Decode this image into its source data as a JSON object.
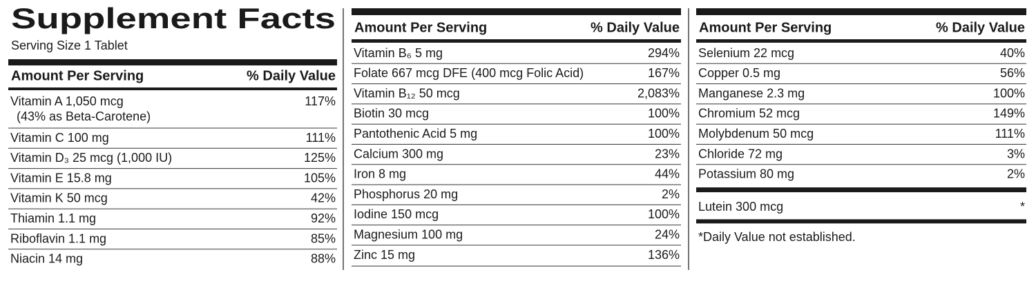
{
  "title": "Supplement Facts",
  "serving_size": "Serving Size 1 Tablet",
  "columns": [
    {
      "header": {
        "amount": "Amount Per Serving",
        "daily_value": "% Daily Value"
      },
      "rows": [
        {
          "name": "Vitamin A 1,050 mcg",
          "note": "(43% as Beta-Carotene)",
          "dv": "117%"
        },
        {
          "name": "Vitamin C 100 mg",
          "dv": "111%"
        },
        {
          "name": "Vitamin D₃ 25 mcg (1,000 IU)",
          "dv": "125%"
        },
        {
          "name": "Vitamin E 15.8 mg",
          "dv": "105%"
        },
        {
          "name": "Vitamin K 50 mcg",
          "dv": "42%"
        },
        {
          "name": "Thiamin 1.1 mg",
          "dv": "92%"
        },
        {
          "name": "Riboflavin 1.1 mg",
          "dv": "85%"
        },
        {
          "name": "Niacin 14 mg",
          "dv": "88%"
        }
      ]
    },
    {
      "header": {
        "amount": "Amount Per Serving",
        "daily_value": "% Daily Value"
      },
      "rows": [
        {
          "name": "Vitamin B₆ 5 mg",
          "dv": "294%"
        },
        {
          "name": "Folate 667 mcg DFE (400 mcg Folic Acid)",
          "dv": "167%"
        },
        {
          "name": "Vitamin B₁₂ 50 mcg",
          "dv": "2,083%"
        },
        {
          "name": "Biotin 30 mcg",
          "dv": "100%"
        },
        {
          "name": "Pantothenic Acid 5 mg",
          "dv": "100%"
        },
        {
          "name": "Calcium 300 mg",
          "dv": "23%"
        },
        {
          "name": "Iron 8 mg",
          "dv": "44%"
        },
        {
          "name": "Phosphorus 20 mg",
          "dv": "2%"
        },
        {
          "name": "Iodine 150 mcg",
          "dv": "100%"
        },
        {
          "name": "Magnesium 100 mg",
          "dv": "24%"
        },
        {
          "name": "Zinc 15 mg",
          "dv": "136%"
        }
      ]
    },
    {
      "header": {
        "amount": "Amount Per Serving",
        "daily_value": "% Daily Value"
      },
      "rows": [
        {
          "name": "Selenium 22 mcg",
          "dv": "40%"
        },
        {
          "name": "Copper 0.5 mg",
          "dv": "56%"
        },
        {
          "name": "Manganese 2.3 mg",
          "dv": "100%"
        },
        {
          "name": "Chromium 52 mcg",
          "dv": "149%"
        },
        {
          "name": "Molybdenum 50 mcg",
          "dv": "111%"
        },
        {
          "name": "Chloride 72 mg",
          "dv": "3%"
        },
        {
          "name": "Potassium 80 mg",
          "dv": "2%"
        }
      ],
      "other_rows": [
        {
          "name": "Lutein 300 mcg",
          "dv": "*"
        }
      ]
    }
  ],
  "footnote": "*Daily Value not established."
}
